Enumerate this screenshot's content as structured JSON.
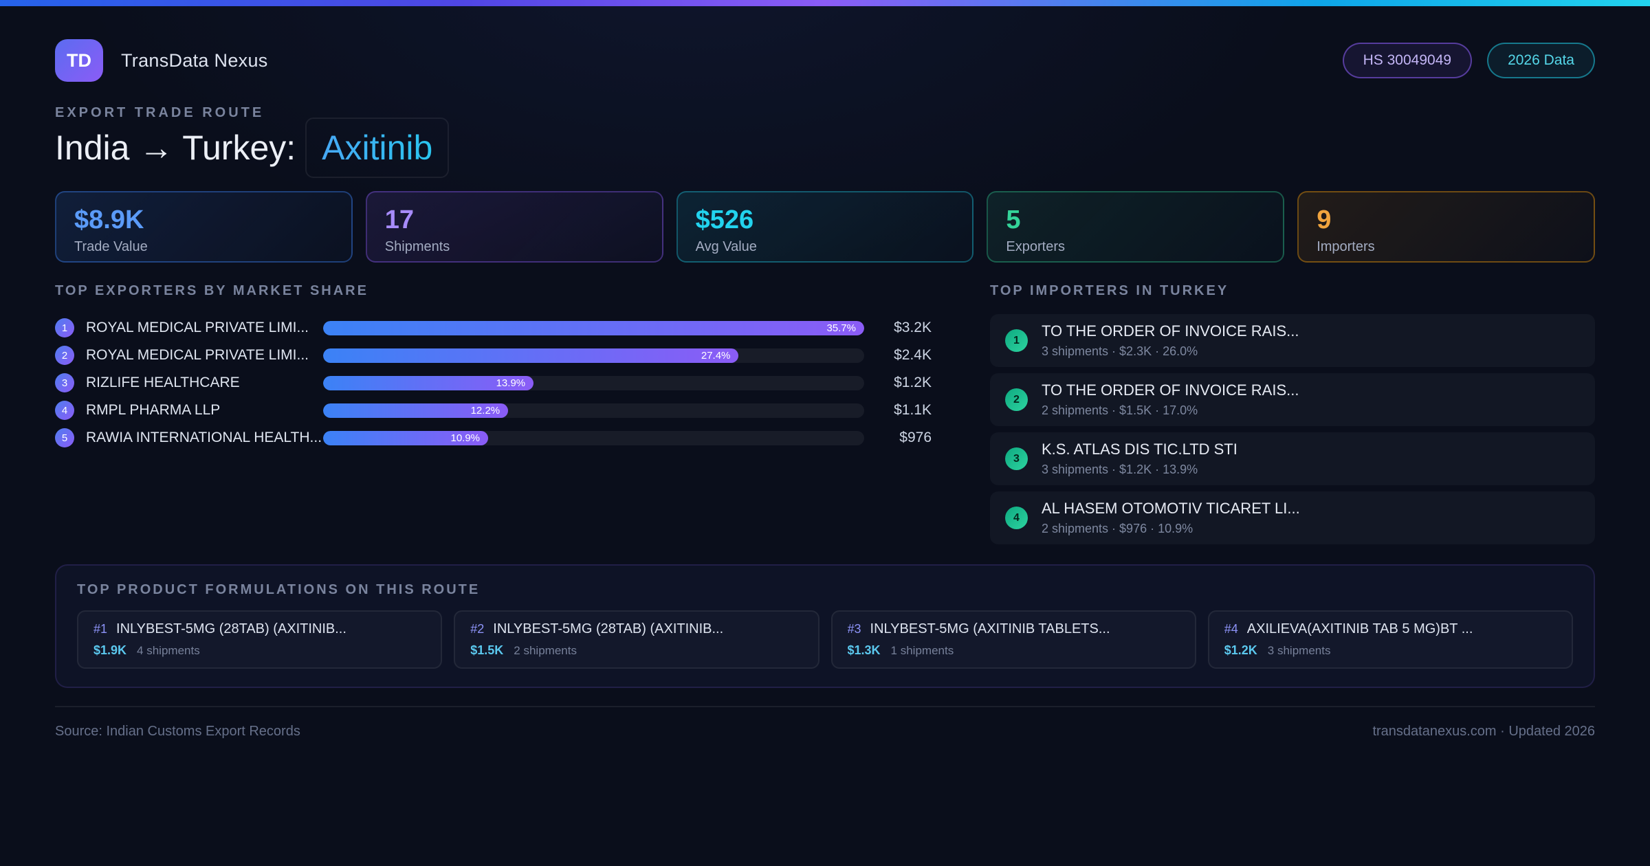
{
  "theme": {
    "accent_blue": "#5b9bf8",
    "accent_purple": "#a78bfa",
    "accent_cyan": "#22d3ee",
    "accent_green": "#34d399",
    "accent_amber": "#f0a43e"
  },
  "header": {
    "logo_text": "TD",
    "app_name": "TransData Nexus",
    "hs_badge": "HS 30049049",
    "year_badge": "2026 Data"
  },
  "hero": {
    "eyebrow": "EXPORT TRADE ROUTE",
    "title_prefix": "India → Turkey:",
    "title_product": "Axitinib"
  },
  "stats": [
    {
      "value": "$8.9K",
      "label": "Trade Value"
    },
    {
      "value": "17",
      "label": "Shipments"
    },
    {
      "value": "$526",
      "label": "Avg Value"
    },
    {
      "value": "5",
      "label": "Exporters"
    },
    {
      "value": "9",
      "label": "Importers"
    }
  ],
  "exporters": {
    "title": "TOP EXPORTERS BY MARKET SHARE",
    "items": [
      {
        "rank": "1",
        "name": "ROYAL MEDICAL PRIVATE LIMI...",
        "share": "35.7%",
        "share_pct": 35.7,
        "value": "$3.2K"
      },
      {
        "rank": "2",
        "name": "ROYAL MEDICAL PRIVATE LIMI...",
        "share": "27.4%",
        "share_pct": 27.4,
        "value": "$2.4K"
      },
      {
        "rank": "3",
        "name": "RIZLIFE HEALTHCARE",
        "share": "13.9%",
        "share_pct": 13.9,
        "value": "$1.2K"
      },
      {
        "rank": "4",
        "name": "RMPL PHARMA LLP",
        "share": "12.2%",
        "share_pct": 12.2,
        "value": "$1.1K"
      },
      {
        "rank": "5",
        "name": "RAWIA INTERNATIONAL HEALTH...",
        "share": "10.9%",
        "share_pct": 10.9,
        "value": "$976"
      }
    ]
  },
  "importers": {
    "title": "TOP IMPORTERS IN TURKEY",
    "items": [
      {
        "rank": "1",
        "name": "TO THE ORDER OF INVOICE RAIS...",
        "meta": "3 shipments · $2.3K · 26.0%"
      },
      {
        "rank": "2",
        "name": "TO THE ORDER OF INVOICE RAIS...",
        "meta": "2 shipments · $1.5K · 17.0%"
      },
      {
        "rank": "3",
        "name": "K.S. ATLAS DIS TIC.LTD STI",
        "meta": "3 shipments · $1.2K · 13.9%"
      },
      {
        "rank": "4",
        "name": "AL HASEM OTOMOTIV TICARET LI...",
        "meta": "2 shipments · $976 · 10.9%"
      }
    ]
  },
  "products": {
    "title": "TOP PRODUCT FORMULATIONS ON THIS ROUTE",
    "items": [
      {
        "rank": "#1",
        "name": "INLYBEST-5MG (28TAB) (AXITINIB...",
        "value": "$1.9K",
        "shipments": "4 shipments"
      },
      {
        "rank": "#2",
        "name": "INLYBEST-5MG (28TAB) (AXITINIB...",
        "value": "$1.5K",
        "shipments": "2 shipments"
      },
      {
        "rank": "#3",
        "name": "INLYBEST-5MG (AXITINIB TABLETS...",
        "value": "$1.3K",
        "shipments": "1 shipments"
      },
      {
        "rank": "#4",
        "name": "AXILIEVA(AXITINIB TAB 5 MG)BT ...",
        "value": "$1.2K",
        "shipments": "3 shipments"
      }
    ]
  },
  "footer": {
    "source": "Source: Indian Customs Export Records",
    "site": "transdatanexus.com · Updated 2026"
  }
}
